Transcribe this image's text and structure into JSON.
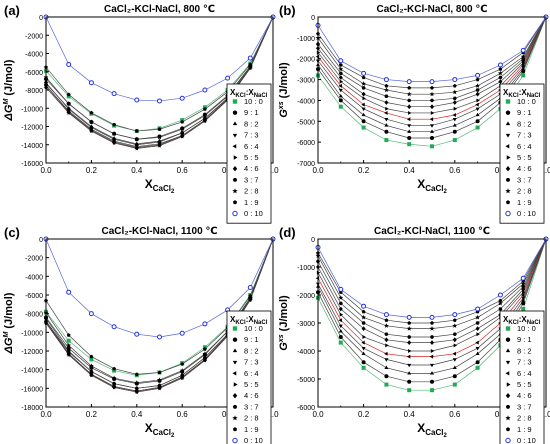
{
  "chart_data": [
    {
      "type": "line",
      "panel_label": "(a)",
      "title": "CaCl₂-KCl-NaCl, 800 ℃",
      "ylabel": "ΔG^M (J/mol)",
      "xlabel": "X_CaCl2",
      "xlim": [
        0,
        1.0
      ],
      "ylim": [
        -16000,
        0
      ],
      "xticks": [
        0.0,
        0.2,
        0.4,
        0.6,
        0.8,
        1.0
      ],
      "yticks": [
        0,
        -2000,
        -4000,
        -6000,
        -8000,
        -10000,
        -12000,
        -14000,
        -16000
      ],
      "legend_title": "XKCl:XNaCl",
      "legend_position": "right",
      "x": [
        0.0,
        0.1,
        0.2,
        0.3,
        0.4,
        0.5,
        0.6,
        0.7,
        0.8,
        0.9,
        1.0
      ],
      "series": [
        {
          "name": "10 : 0",
          "values": [
            -5900,
            -8700,
            -10600,
            -11900,
            -12500,
            -12200,
            -11300,
            -9900,
            -8000,
            -5100,
            0
          ]
        },
        {
          "name": "9 : 1",
          "values": [
            -6800,
            -9500,
            -11500,
            -12800,
            -13400,
            -13100,
            -12200,
            -10700,
            -8600,
            -5400,
            0
          ]
        },
        {
          "name": "8 : 2",
          "values": [
            -7300,
            -10000,
            -12000,
            -13300,
            -13900,
            -13600,
            -12700,
            -11100,
            -8900,
            -5500,
            0
          ]
        },
        {
          "name": "7 : 3",
          "values": [
            -7500,
            -10300,
            -12300,
            -13600,
            -14200,
            -13900,
            -13000,
            -11300,
            -9000,
            -5500,
            0
          ]
        },
        {
          "name": "6 : 4",
          "values": [
            -7700,
            -10500,
            -12500,
            -13800,
            -14400,
            -14100,
            -13100,
            -11400,
            -9100,
            -5600,
            0
          ]
        },
        {
          "name": "5 : 5",
          "values": [
            -7700,
            -10500,
            -12500,
            -13800,
            -14400,
            -14100,
            -13100,
            -11400,
            -9100,
            -5600,
            0
          ]
        },
        {
          "name": "4 : 6",
          "values": [
            -7500,
            -10400,
            -12400,
            -13700,
            -14300,
            -14000,
            -13000,
            -11300,
            -9000,
            -5500,
            0
          ]
        },
        {
          "name": "3 : 7",
          "values": [
            -7200,
            -10100,
            -12100,
            -13400,
            -14000,
            -13700,
            -12700,
            -11100,
            -8900,
            -5500,
            0
          ]
        },
        {
          "name": "2 : 8",
          "values": [
            -6600,
            -9500,
            -11500,
            -12800,
            -13400,
            -13200,
            -12300,
            -10800,
            -8700,
            -5400,
            0
          ]
        },
        {
          "name": "1 : 9",
          "values": [
            -5500,
            -8500,
            -10500,
            -11800,
            -12500,
            -12300,
            -11500,
            -10100,
            -8200,
            -5200,
            0
          ]
        },
        {
          "name": "0 : 10",
          "values": [
            0,
            -5200,
            -7200,
            -8400,
            -9100,
            -9200,
            -8900,
            -8000,
            -6700,
            -4500,
            0
          ]
        }
      ]
    },
    {
      "type": "line",
      "panel_label": "(b)",
      "title": "CaCl₂-KCl-NaCl, 800 ℃",
      "ylabel": "G^xs (J/mol)",
      "xlabel": "X_CaCl2",
      "xlim": [
        0,
        1.0
      ],
      "ylim": [
        -7000,
        0
      ],
      "xticks": [
        0.0,
        0.2,
        0.4,
        0.6,
        0.8,
        1.0
      ],
      "yticks": [
        0,
        -1000,
        -2000,
        -3000,
        -4000,
        -5000,
        -6000,
        -7000
      ],
      "legend_title": "XKCl:XNaCl",
      "legend_position": "right",
      "x": [
        0.0,
        0.1,
        0.2,
        0.3,
        0.4,
        0.5,
        0.6,
        0.7,
        0.8,
        0.9,
        1.0
      ],
      "series": [
        {
          "name": "10 : 0",
          "values": [
            -2800,
            -4300,
            -5300,
            -5900,
            -6100,
            -6200,
            -5900,
            -5300,
            -4400,
            -2800,
            0
          ]
        },
        {
          "name": "9 : 1",
          "values": [
            -2500,
            -4000,
            -5000,
            -5500,
            -5800,
            -5800,
            -5500,
            -5000,
            -4100,
            -2600,
            0
          ]
        },
        {
          "name": "8 : 2",
          "values": [
            -2300,
            -3800,
            -4700,
            -5200,
            -5500,
            -5500,
            -5200,
            -4700,
            -3900,
            -2500,
            0
          ]
        },
        {
          "name": "7 : 3",
          "values": [
            -2100,
            -3500,
            -4400,
            -4900,
            -5200,
            -5200,
            -4900,
            -4400,
            -3700,
            -2400,
            0
          ]
        },
        {
          "name": "6 : 4",
          "values": [
            -1900,
            -3300,
            -4200,
            -4600,
            -4900,
            -4900,
            -4700,
            -4200,
            -3500,
            -2300,
            0
          ]
        },
        {
          "name": "5 : 5",
          "values": [
            -1700,
            -3100,
            -3900,
            -4400,
            -4600,
            -4600,
            -4400,
            -4000,
            -3300,
            -2200,
            0
          ]
        },
        {
          "name": "4 : 6",
          "values": [
            -1500,
            -2900,
            -3700,
            -4100,
            -4300,
            -4300,
            -4100,
            -3700,
            -3100,
            -2100,
            0
          ]
        },
        {
          "name": "3 : 7",
          "values": [
            -1300,
            -2700,
            -3400,
            -3800,
            -4000,
            -4000,
            -3900,
            -3500,
            -2900,
            -2000,
            0
          ]
        },
        {
          "name": "2 : 8",
          "values": [
            -1000,
            -2500,
            -3200,
            -3500,
            -3700,
            -3700,
            -3600,
            -3300,
            -2700,
            -1900,
            0
          ]
        },
        {
          "name": "1 : 9",
          "values": [
            -800,
            -2300,
            -2900,
            -3300,
            -3400,
            -3400,
            -3300,
            -3000,
            -2500,
            -1700,
            0
          ]
        },
        {
          "name": "0 : 10",
          "values": [
            -400,
            -2100,
            -2700,
            -3000,
            -3100,
            -3100,
            -3000,
            -2800,
            -2300,
            -1600,
            0
          ]
        }
      ]
    },
    {
      "type": "line",
      "panel_label": "(c)",
      "title": "CaCl₂-KCl-NaCl, 1100 ℃",
      "ylabel": "ΔG^M (J/mol)",
      "xlabel": "X_CaCl2",
      "xlim": [
        0,
        1.0
      ],
      "ylim": [
        -18000,
        0
      ],
      "xticks": [
        0.0,
        0.2,
        0.4,
        0.6,
        0.8,
        1.0
      ],
      "yticks": [
        0,
        -2000,
        -4000,
        -6000,
        -8000,
        -10000,
        -12000,
        -14000,
        -16000,
        -18000
      ],
      "legend_title": "XKCl:XNaCl",
      "legend_position": "right",
      "x": [
        0.0,
        0.1,
        0.2,
        0.3,
        0.4,
        0.5,
        0.6,
        0.7,
        0.8,
        0.9,
        1.0
      ],
      "series": [
        {
          "name": "10 : 0",
          "values": [
            -7800,
            -10900,
            -12900,
            -14100,
            -14600,
            -14300,
            -13300,
            -11600,
            -9400,
            -6000,
            0
          ]
        },
        {
          "name": "9 : 1",
          "values": [
            -8400,
            -11700,
            -13800,
            -15000,
            -15500,
            -15200,
            -14200,
            -12400,
            -9900,
            -6300,
            0
          ]
        },
        {
          "name": "8 : 2",
          "values": [
            -8800,
            -12100,
            -14200,
            -15500,
            -16000,
            -15700,
            -14600,
            -12700,
            -10200,
            -6400,
            0
          ]
        },
        {
          "name": "7 : 3",
          "values": [
            -8900,
            -12300,
            -14500,
            -15800,
            -16300,
            -15900,
            -14800,
            -12900,
            -10300,
            -6500,
            0
          ]
        },
        {
          "name": "6 : 4",
          "values": [
            -9000,
            -12400,
            -14600,
            -15900,
            -16400,
            -16000,
            -14900,
            -13000,
            -10400,
            -6500,
            0
          ]
        },
        {
          "name": "5 : 5",
          "values": [
            -9000,
            -12400,
            -14600,
            -15900,
            -16400,
            -16000,
            -14900,
            -13000,
            -10400,
            -6500,
            0
          ]
        },
        {
          "name": "4 : 6",
          "values": [
            -8800,
            -12300,
            -14500,
            -15800,
            -16300,
            -15900,
            -14800,
            -12900,
            -10300,
            -6500,
            0
          ]
        },
        {
          "name": "3 : 7",
          "values": [
            -8500,
            -12000,
            -14200,
            -15500,
            -16000,
            -15700,
            -14600,
            -12700,
            -10200,
            -6400,
            0
          ]
        },
        {
          "name": "2 : 8",
          "values": [
            -7900,
            -11400,
            -13600,
            -14900,
            -15400,
            -15100,
            -14100,
            -12300,
            -9900,
            -6300,
            0
          ]
        },
        {
          "name": "1 : 9",
          "values": [
            -6600,
            -10300,
            -12600,
            -13900,
            -14500,
            -14300,
            -13400,
            -11800,
            -9500,
            -6100,
            0
          ]
        },
        {
          "name": "0 : 10",
          "values": [
            0,
            -5700,
            -8000,
            -9400,
            -10200,
            -10500,
            -10100,
            -9100,
            -7600,
            -5200,
            0
          ]
        }
      ]
    },
    {
      "type": "line",
      "panel_label": "(d)",
      "title": "CaCl₂-KCl-NaCl, 1100 ℃",
      "ylabel": "G^xs (J/mol)",
      "xlabel": "X_CaCl2",
      "xlim": [
        0,
        1.0
      ],
      "ylim": [
        -6000,
        0
      ],
      "xticks": [
        0.0,
        0.2,
        0.4,
        0.6,
        0.8,
        1.0
      ],
      "yticks": [
        0,
        -1000,
        -2000,
        -3000,
        -4000,
        -5000,
        -6000
      ],
      "legend_title": "XKCl:XNaCl",
      "legend_position": "right",
      "x": [
        0.0,
        0.1,
        0.2,
        0.3,
        0.4,
        0.5,
        0.6,
        0.7,
        0.8,
        0.9,
        1.0
      ],
      "series": [
        {
          "name": "10 : 0",
          "values": [
            -2100,
            -3700,
            -4600,
            -5200,
            -5400,
            -5400,
            -5200,
            -4600,
            -3800,
            -2500,
            0
          ]
        },
        {
          "name": "9 : 1",
          "values": [
            -1900,
            -3500,
            -4400,
            -4900,
            -5100,
            -5100,
            -4900,
            -4400,
            -3600,
            -2300,
            0
          ]
        },
        {
          "name": "8 : 2",
          "values": [
            -1700,
            -3300,
            -4100,
            -4600,
            -4800,
            -4800,
            -4600,
            -4100,
            -3400,
            -2200,
            0
          ]
        },
        {
          "name": "7 : 3",
          "values": [
            -1600,
            -3100,
            -3900,
            -4300,
            -4500,
            -4500,
            -4300,
            -3900,
            -3200,
            -2100,
            0
          ]
        },
        {
          "name": "6 : 4",
          "values": [
            -1400,
            -2900,
            -3700,
            -4100,
            -4200,
            -4200,
            -4100,
            -3700,
            -3000,
            -2000,
            0
          ]
        },
        {
          "name": "5 : 5",
          "values": [
            -1200,
            -2700,
            -3500,
            -3800,
            -4000,
            -4000,
            -3800,
            -3400,
            -2800,
            -1900,
            0
          ]
        },
        {
          "name": "4 : 6",
          "values": [
            -1000,
            -2500,
            -3200,
            -3600,
            -3700,
            -3700,
            -3600,
            -3200,
            -2700,
            -1800,
            0
          ]
        },
        {
          "name": "3 : 7",
          "values": [
            -800,
            -2300,
            -3000,
            -3400,
            -3500,
            -3500,
            -3400,
            -3000,
            -2500,
            -1700,
            0
          ]
        },
        {
          "name": "2 : 8",
          "values": [
            -600,
            -2100,
            -2800,
            -3100,
            -3200,
            -3200,
            -3100,
            -2800,
            -2300,
            -1600,
            0
          ]
        },
        {
          "name": "1 : 9",
          "values": [
            -500,
            -1900,
            -2600,
            -2900,
            -3000,
            -3000,
            -2900,
            -2600,
            -2200,
            -1500,
            0
          ]
        },
        {
          "name": "0 : 10",
          "values": [
            -300,
            -1800,
            -2400,
            -2700,
            -2800,
            -2800,
            -2700,
            -2500,
            -2000,
            -1400,
            0
          ]
        }
      ]
    }
  ],
  "style": {
    "colors": {
      "10 : 0": "#22aa55",
      "9 : 1": "#000000",
      "8 : 2": "#000000",
      "7 : 3": "#000000",
      "6 : 4": "#000000",
      "5 : 5": "#000000",
      "4 : 6": "#000000",
      "3 : 7": "#000000",
      "2 : 8": "#000000",
      "1 : 9": "#000000",
      "0 : 10": "#2233dd"
    },
    "highlight_line_color": "#dd2222",
    "highlight_series": "6 : 4",
    "markers": {
      "10 : 0": "square",
      "9 : 1": "circle",
      "8 : 2": "triangle-up",
      "7 : 3": "triangle-down",
      "6 : 4": "triangle-left",
      "5 : 5": "triangle-right",
      "4 : 6": "diamond",
      "3 : 7": "hexagon",
      "2 : 8": "star",
      "1 : 9": "pentagon",
      "0 : 10": "circle-open"
    }
  }
}
